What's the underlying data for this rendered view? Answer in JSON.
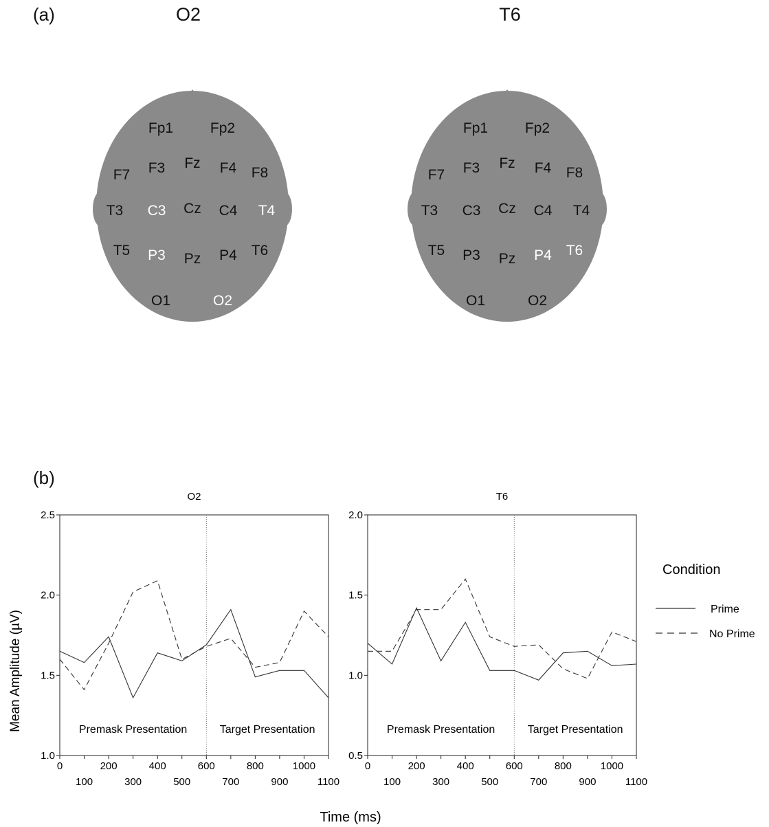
{
  "panel_a": {
    "label": "(a)",
    "heads": [
      {
        "title": "O2",
        "highlighted": [
          "C3",
          "T4",
          "P3",
          "O2"
        ]
      },
      {
        "title": "T6",
        "highlighted": [
          "P4",
          "T6"
        ]
      }
    ],
    "electrodes": [
      "Fp1",
      "Fp2",
      "F7",
      "F3",
      "Fz",
      "F4",
      "F8",
      "T3",
      "C3",
      "Cz",
      "C4",
      "T4",
      "T5",
      "P3",
      "Pz",
      "P4",
      "T6",
      "O1",
      "O2"
    ],
    "colors": {
      "head": "#8a8a8a",
      "label": "#111111",
      "highlight": "#ffffff"
    }
  },
  "panel_b": {
    "label": "(b)",
    "ylabel": "Mean Amplitude (µV)",
    "xlabel": "Time (ms)",
    "legend": {
      "title": "Condition",
      "items": [
        {
          "label": "Prime",
          "style": "solid"
        },
        {
          "label": "No Prime",
          "style": "dashed"
        }
      ]
    }
  },
  "chart_data": [
    {
      "type": "line",
      "title": "O2",
      "xlabel": "Time (ms)",
      "ylabel": "Mean Amplitude (µV)",
      "x": [
        0,
        100,
        200,
        300,
        400,
        500,
        600,
        700,
        800,
        900,
        1000,
        1100
      ],
      "xticks_top": [
        "0",
        "200",
        "400",
        "600",
        "800",
        "1000"
      ],
      "xticks_bottom": [
        "100",
        "300",
        "500",
        "700",
        "900",
        "1100"
      ],
      "ylim": [
        1.0,
        2.5
      ],
      "yticks": [
        "1.0",
        "1.5",
        "2.0",
        "2.5"
      ],
      "divider_x": 600,
      "annotations": [
        "Premask Presentation",
        "Target Presentation"
      ],
      "series": [
        {
          "name": "Prime",
          "values": [
            1.65,
            1.58,
            1.74,
            1.36,
            1.64,
            1.59,
            1.69,
            1.91,
            1.49,
            1.53,
            1.53,
            1.36
          ]
        },
        {
          "name": "No Prime",
          "values": [
            1.6,
            1.41,
            1.7,
            2.02,
            2.09,
            1.6,
            1.68,
            1.73,
            1.55,
            1.58,
            1.9,
            1.74
          ]
        }
      ]
    },
    {
      "type": "line",
      "title": "T6",
      "xlabel": "Time (ms)",
      "ylabel": "Mean Amplitude (µV)",
      "x": [
        0,
        100,
        200,
        300,
        400,
        500,
        600,
        700,
        800,
        900,
        1000,
        1100
      ],
      "xticks_top": [
        "0",
        "200",
        "400",
        "600",
        "800",
        "1000"
      ],
      "xticks_bottom": [
        "100",
        "300",
        "500",
        "700",
        "900",
        "1100"
      ],
      "ylim": [
        0.5,
        2.0
      ],
      "yticks": [
        "0.5",
        "1.0",
        "1.5",
        "2.0"
      ],
      "divider_x": 600,
      "annotations": [
        "Premask Presentation",
        "Target Presentation"
      ],
      "series": [
        {
          "name": "Prime",
          "values": [
            1.2,
            1.07,
            1.42,
            1.09,
            1.33,
            1.03,
            1.03,
            0.97,
            1.14,
            1.15,
            1.06,
            1.07
          ]
        },
        {
          "name": "No Prime",
          "values": [
            1.15,
            1.15,
            1.41,
            1.41,
            1.6,
            1.24,
            1.18,
            1.19,
            1.04,
            0.98,
            1.27,
            1.21
          ]
        }
      ]
    }
  ]
}
